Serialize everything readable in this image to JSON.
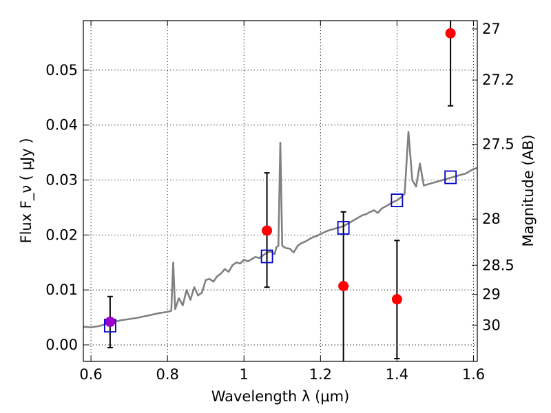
{
  "chart_data": {
    "type": "scatter",
    "xlabel": "Wavelength  λ (μm)",
    "ylabel": "Flux  F_ν  ( μJy )",
    "ylabel_right": "Magnitude (AB)",
    "xlim": [
      0.58,
      1.61
    ],
    "ylim": [
      -0.003,
      0.059
    ],
    "grid": true,
    "x_ticks": [
      0.6,
      0.8,
      1.0,
      1.2,
      1.4,
      1.6
    ],
    "x_tick_labels": [
      "0.6",
      "0.8",
      "1",
      "1.2",
      "1.4",
      "1.6"
    ],
    "y_ticks": [
      0.0,
      0.01,
      0.02,
      0.03,
      0.04,
      0.05
    ],
    "y_tick_labels": [
      "0.00",
      "0.01",
      "0.02",
      "0.03",
      "0.04",
      "0.05"
    ],
    "right_ticks": [
      {
        "label": "27",
        "flux": 0.0575
      },
      {
        "label": "27.2",
        "flux": 0.0482
      },
      {
        "label": "27.5",
        "flux": 0.0365
      },
      {
        "label": "28",
        "flux": 0.0229
      },
      {
        "label": "28.5",
        "flux": 0.0145
      },
      {
        "label": "29",
        "flux": 0.0092
      },
      {
        "label": "30",
        "flux": 0.0036
      }
    ],
    "model_spectrum": {
      "color": "#808080",
      "points": [
        [
          0.58,
          0.0033
        ],
        [
          0.6,
          0.0032
        ],
        [
          0.62,
          0.0034
        ],
        [
          0.64,
          0.0038
        ],
        [
          0.66,
          0.0042
        ],
        [
          0.68,
          0.0045
        ],
        [
          0.7,
          0.0047
        ],
        [
          0.72,
          0.0049
        ],
        [
          0.74,
          0.0052
        ],
        [
          0.76,
          0.0055
        ],
        [
          0.78,
          0.0058
        ],
        [
          0.8,
          0.006
        ],
        [
          0.81,
          0.0062
        ],
        [
          0.815,
          0.015
        ],
        [
          0.82,
          0.0065
        ],
        [
          0.83,
          0.0085
        ],
        [
          0.84,
          0.0072
        ],
        [
          0.85,
          0.01
        ],
        [
          0.86,
          0.0082
        ],
        [
          0.87,
          0.0105
        ],
        [
          0.88,
          0.009
        ],
        [
          0.89,
          0.0095
        ],
        [
          0.9,
          0.0118
        ],
        [
          0.91,
          0.012
        ],
        [
          0.92,
          0.0115
        ],
        [
          0.93,
          0.0125
        ],
        [
          0.94,
          0.013
        ],
        [
          0.95,
          0.0138
        ],
        [
          0.96,
          0.0133
        ],
        [
          0.97,
          0.0145
        ],
        [
          0.98,
          0.015
        ],
        [
          0.99,
          0.0148
        ],
        [
          1.0,
          0.0155
        ],
        [
          1.01,
          0.0152
        ],
        [
          1.02,
          0.0156
        ],
        [
          1.03,
          0.016
        ],
        [
          1.04,
          0.0158
        ],
        [
          1.05,
          0.0163
        ],
        [
          1.06,
          0.0168
        ],
        [
          1.07,
          0.017
        ],
        [
          1.08,
          0.0165
        ],
        [
          1.085,
          0.0178
        ],
        [
          1.09,
          0.018
        ],
        [
          1.095,
          0.0368
        ],
        [
          1.1,
          0.018
        ],
        [
          1.11,
          0.0176
        ],
        [
          1.12,
          0.0175
        ],
        [
          1.13,
          0.0168
        ],
        [
          1.14,
          0.018
        ],
        [
          1.15,
          0.0185
        ],
        [
          1.16,
          0.0188
        ],
        [
          1.17,
          0.0192
        ],
        [
          1.18,
          0.0196
        ],
        [
          1.19,
          0.0198
        ],
        [
          1.2,
          0.0202
        ],
        [
          1.21,
          0.0205
        ],
        [
          1.22,
          0.0208
        ],
        [
          1.23,
          0.021
        ],
        [
          1.24,
          0.0212
        ],
        [
          1.25,
          0.0214
        ],
        [
          1.26,
          0.0216
        ],
        [
          1.27,
          0.022
        ],
        [
          1.28,
          0.0224
        ],
        [
          1.29,
          0.0228
        ],
        [
          1.3,
          0.0232
        ],
        [
          1.31,
          0.0236
        ],
        [
          1.32,
          0.0238
        ],
        [
          1.33,
          0.0242
        ],
        [
          1.34,
          0.0245
        ],
        [
          1.35,
          0.024
        ],
        [
          1.36,
          0.0248
        ],
        [
          1.37,
          0.0252
        ],
        [
          1.38,
          0.0256
        ],
        [
          1.39,
          0.026
        ],
        [
          1.4,
          0.0263
        ],
        [
          1.41,
          0.0268
        ],
        [
          1.42,
          0.0275
        ],
        [
          1.43,
          0.0388
        ],
        [
          1.44,
          0.03
        ],
        [
          1.45,
          0.0288
        ],
        [
          1.46,
          0.033
        ],
        [
          1.47,
          0.029
        ],
        [
          1.48,
          0.0292
        ],
        [
          1.49,
          0.0294
        ],
        [
          1.5,
          0.0296
        ],
        [
          1.51,
          0.0298
        ],
        [
          1.52,
          0.03
        ],
        [
          1.53,
          0.0302
        ],
        [
          1.54,
          0.0304
        ],
        [
          1.55,
          0.0306
        ],
        [
          1.56,
          0.0308
        ],
        [
          1.57,
          0.031
        ],
        [
          1.58,
          0.0312
        ],
        [
          1.59,
          0.0316
        ],
        [
          1.6,
          0.032
        ],
        [
          1.61,
          0.0322
        ]
      ]
    },
    "model_photometry": {
      "marker": "open-square",
      "color": "#0000cc",
      "points": [
        [
          0.65,
          0.0035
        ],
        [
          1.06,
          0.0161
        ],
        [
          1.26,
          0.0213
        ],
        [
          1.4,
          0.0263
        ],
        [
          1.54,
          0.0305
        ]
      ]
    },
    "observed": {
      "marker": "filled-circle",
      "color": "#ff0000",
      "points": [
        {
          "x": 0.65,
          "y": 0.0042,
          "ylow": -0.0005,
          "yhigh": 0.0088,
          "color": "#9900cc"
        },
        {
          "x": 1.06,
          "y": 0.0208,
          "ylow": 0.0105,
          "yhigh": 0.0313
        },
        {
          "x": 1.26,
          "y": 0.0107,
          "ylow": -0.003,
          "yhigh": 0.0242
        },
        {
          "x": 1.4,
          "y": 0.0083,
          "ylow": -0.0025,
          "yhigh": 0.019
        },
        {
          "x": 1.54,
          "y": 0.0567,
          "ylow": 0.0435,
          "yhigh": 0.059
        }
      ]
    }
  }
}
